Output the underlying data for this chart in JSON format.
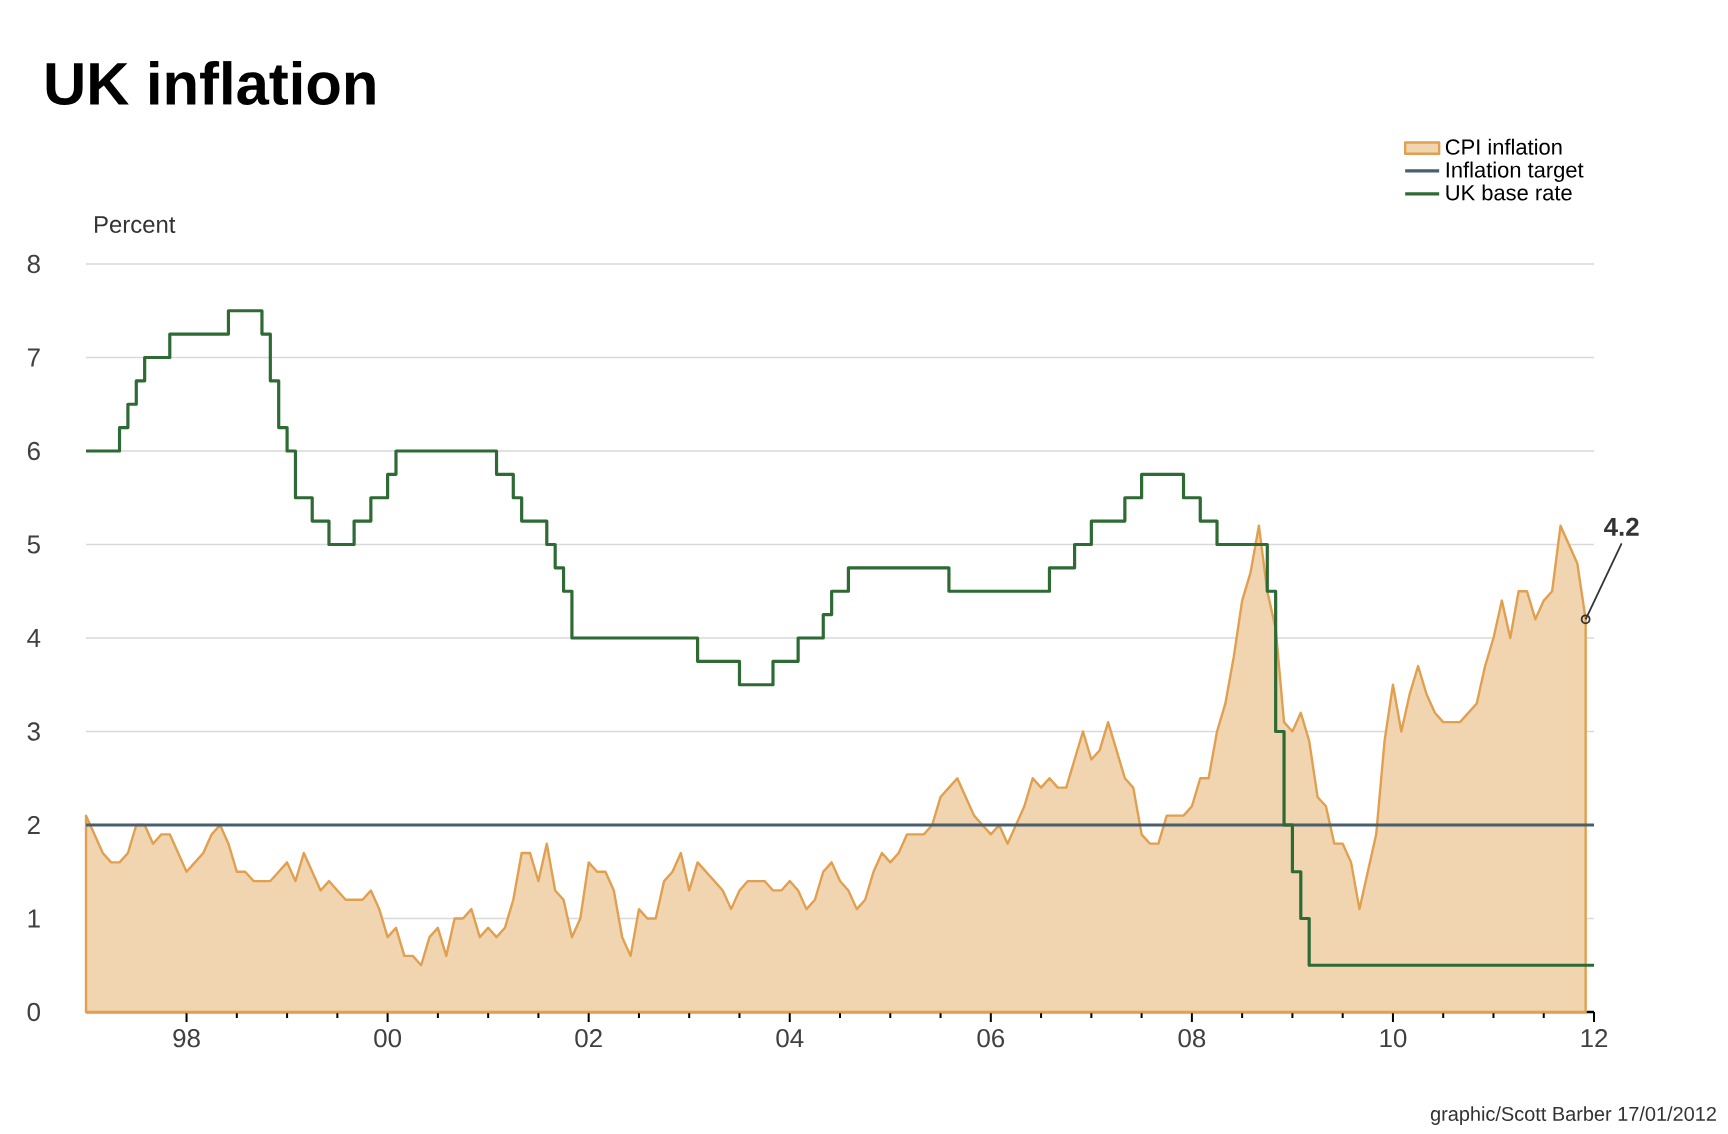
{
  "chart_data": {
    "type": "line",
    "title": "UK inflation",
    "ylabel": "Percent",
    "xlim": [
      "1997-01",
      "2012-01"
    ],
    "xticks": [
      {
        "value": "1998-01",
        "label": "98"
      },
      {
        "value": "2000-01",
        "label": "00"
      },
      {
        "value": "2002-01",
        "label": "02"
      },
      {
        "value": "2004-01",
        "label": "04"
      },
      {
        "value": "2006-01",
        "label": "06"
      },
      {
        "value": "2008-01",
        "label": "08"
      },
      {
        "value": "2010-01",
        "label": "10"
      },
      {
        "value": "2012-01",
        "label": "12"
      }
    ],
    "ylim": [
      0,
      8
    ],
    "yticks": [
      0,
      1,
      2,
      3,
      4,
      5,
      6,
      7,
      8
    ],
    "grid": "y",
    "legend": "top right",
    "annotations": [
      {
        "text": "4.2",
        "x": "2011-12",
        "y": 4.2
      },
      "graphic/Scott Barber 17/01/2012"
    ],
    "series": [
      {
        "name": "CPI inflation",
        "type": "area",
        "color": "#e0a050",
        "x": [
          "1997-01",
          "1997-02",
          "1997-03",
          "1997-04",
          "1997-05",
          "1997-06",
          "1997-07",
          "1997-08",
          "1997-09",
          "1997-10",
          "1997-11",
          "1997-12",
          "1998-01",
          "1998-02",
          "1998-03",
          "1998-04",
          "1998-05",
          "1998-06",
          "1998-07",
          "1998-08",
          "1998-09",
          "1998-10",
          "1998-11",
          "1998-12",
          "1999-01",
          "1999-02",
          "1999-03",
          "1999-04",
          "1999-05",
          "1999-06",
          "1999-07",
          "1999-08",
          "1999-09",
          "1999-10",
          "1999-11",
          "1999-12",
          "2000-01",
          "2000-02",
          "2000-03",
          "2000-04",
          "2000-05",
          "2000-06",
          "2000-07",
          "2000-08",
          "2000-09",
          "2000-10",
          "2000-11",
          "2000-12",
          "2001-01",
          "2001-02",
          "2001-03",
          "2001-04",
          "2001-05",
          "2001-06",
          "2001-07",
          "2001-08",
          "2001-09",
          "2001-10",
          "2001-11",
          "2001-12",
          "2002-01",
          "2002-02",
          "2002-03",
          "2002-04",
          "2002-05",
          "2002-06",
          "2002-07",
          "2002-08",
          "2002-09",
          "2002-10",
          "2002-11",
          "2002-12",
          "2003-01",
          "2003-02",
          "2003-03",
          "2003-04",
          "2003-05",
          "2003-06",
          "2003-07",
          "2003-08",
          "2003-09",
          "2003-10",
          "2003-11",
          "2003-12",
          "2004-01",
          "2004-02",
          "2004-03",
          "2004-04",
          "2004-05",
          "2004-06",
          "2004-07",
          "2004-08",
          "2004-09",
          "2004-10",
          "2004-11",
          "2004-12",
          "2005-01",
          "2005-02",
          "2005-03",
          "2005-04",
          "2005-05",
          "2005-06",
          "2005-07",
          "2005-08",
          "2005-09",
          "2005-10",
          "2005-11",
          "2005-12",
          "2006-01",
          "2006-02",
          "2006-03",
          "2006-04",
          "2006-05",
          "2006-06",
          "2006-07",
          "2006-08",
          "2006-09",
          "2006-10",
          "2006-11",
          "2006-12",
          "2007-01",
          "2007-02",
          "2007-03",
          "2007-04",
          "2007-05",
          "2007-06",
          "2007-07",
          "2007-08",
          "2007-09",
          "2007-10",
          "2007-11",
          "2007-12",
          "2008-01",
          "2008-02",
          "2008-03",
          "2008-04",
          "2008-05",
          "2008-06",
          "2008-07",
          "2008-08",
          "2008-09",
          "2008-10",
          "2008-11",
          "2008-12",
          "2009-01",
          "2009-02",
          "2009-03",
          "2009-04",
          "2009-05",
          "2009-06",
          "2009-07",
          "2009-08",
          "2009-09",
          "2009-10",
          "2009-11",
          "2009-12",
          "2010-01",
          "2010-02",
          "2010-03",
          "2010-04",
          "2010-05",
          "2010-06",
          "2010-07",
          "2010-08",
          "2010-09",
          "2010-10",
          "2010-11",
          "2010-12",
          "2011-01",
          "2011-02",
          "2011-03",
          "2011-04",
          "2011-05",
          "2011-06",
          "2011-07",
          "2011-08",
          "2011-09",
          "2011-10",
          "2011-11",
          "2011-12"
        ],
        "values": [
          2.1,
          1.9,
          1.7,
          1.6,
          1.6,
          1.7,
          2.0,
          2.0,
          1.8,
          1.9,
          1.9,
          1.7,
          1.5,
          1.6,
          1.7,
          1.9,
          2.0,
          1.8,
          1.5,
          1.5,
          1.4,
          1.4,
          1.4,
          1.5,
          1.6,
          1.4,
          1.7,
          1.5,
          1.3,
          1.4,
          1.3,
          1.2,
          1.2,
          1.2,
          1.3,
          1.1,
          0.8,
          0.9,
          0.6,
          0.6,
          0.5,
          0.8,
          0.9,
          0.6,
          1.0,
          1.0,
          1.1,
          0.8,
          0.9,
          0.8,
          0.9,
          1.2,
          1.7,
          1.7,
          1.4,
          1.8,
          1.3,
          1.2,
          0.8,
          1.0,
          1.6,
          1.5,
          1.5,
          1.3,
          0.8,
          0.6,
          1.1,
          1.0,
          1.0,
          1.4,
          1.5,
          1.7,
          1.3,
          1.6,
          1.5,
          1.4,
          1.3,
          1.1,
          1.3,
          1.4,
          1.4,
          1.4,
          1.3,
          1.3,
          1.4,
          1.3,
          1.1,
          1.2,
          1.5,
          1.6,
          1.4,
          1.3,
          1.1,
          1.2,
          1.5,
          1.7,
          1.6,
          1.7,
          1.9,
          1.9,
          1.9,
          2.0,
          2.3,
          2.4,
          2.5,
          2.3,
          2.1,
          2.0,
          1.9,
          2.0,
          1.8,
          2.0,
          2.2,
          2.5,
          2.4,
          2.5,
          2.4,
          2.4,
          2.7,
          3.0,
          2.7,
          2.8,
          3.1,
          2.8,
          2.5,
          2.4,
          1.9,
          1.8,
          1.8,
          2.1,
          2.1,
          2.1,
          2.2,
          2.5,
          2.5,
          3.0,
          3.3,
          3.8,
          4.4,
          4.7,
          5.2,
          4.5,
          4.1,
          3.1,
          3.0,
          3.2,
          2.9,
          2.3,
          2.2,
          1.8,
          1.8,
          1.6,
          1.1,
          1.5,
          1.9,
          2.9,
          3.5,
          3.0,
          3.4,
          3.7,
          3.4,
          3.2,
          3.1,
          3.1,
          3.1,
          3.2,
          3.3,
          3.7,
          4.0,
          4.4,
          4.0,
          4.5,
          4.5,
          4.2,
          4.4,
          4.5,
          5.2,
          5.0,
          4.8,
          4.2
        ]
      },
      {
        "name": "Inflation target",
        "color": "#4a5f6e",
        "x": [
          "1997-01",
          "2012-01"
        ],
        "values": [
          2,
          2
        ]
      },
      {
        "name": "UK base rate",
        "type": "step",
        "color": "#2e6a34",
        "x": [
          "1997-01",
          "1997-05",
          "1997-06",
          "1997-07",
          "1997-08",
          "1997-11",
          "1998-06",
          "1998-10",
          "1998-11",
          "1998-12",
          "1999-01",
          "1999-02",
          "1999-04",
          "1999-06",
          "1999-09",
          "1999-11",
          "2000-01",
          "2000-02",
          "2001-02",
          "2001-04",
          "2001-05",
          "2001-08",
          "2001-09",
          "2001-10",
          "2001-11",
          "2003-02",
          "2003-07",
          "2003-11",
          "2004-02",
          "2004-05",
          "2004-06",
          "2004-08",
          "2005-08",
          "2006-08",
          "2006-11",
          "2007-01",
          "2007-05",
          "2007-07",
          "2007-12",
          "2008-02",
          "2008-04",
          "2008-10",
          "2008-11",
          "2008-12",
          "2009-01",
          "2009-02",
          "2009-03",
          "2012-01"
        ],
        "values": [
          6.0,
          6.25,
          6.5,
          6.75,
          7.0,
          7.25,
          7.5,
          7.25,
          6.75,
          6.25,
          6.0,
          5.5,
          5.25,
          5.0,
          5.25,
          5.5,
          5.75,
          6.0,
          5.75,
          5.5,
          5.25,
          5.0,
          4.75,
          4.5,
          4.0,
          3.75,
          3.5,
          3.75,
          4.0,
          4.25,
          4.5,
          4.75,
          4.5,
          4.75,
          5.0,
          5.25,
          5.5,
          5.75,
          5.5,
          5.25,
          5.0,
          4.5,
          3.0,
          2.0,
          1.5,
          1.0,
          0.5,
          0.5
        ]
      }
    ]
  }
}
